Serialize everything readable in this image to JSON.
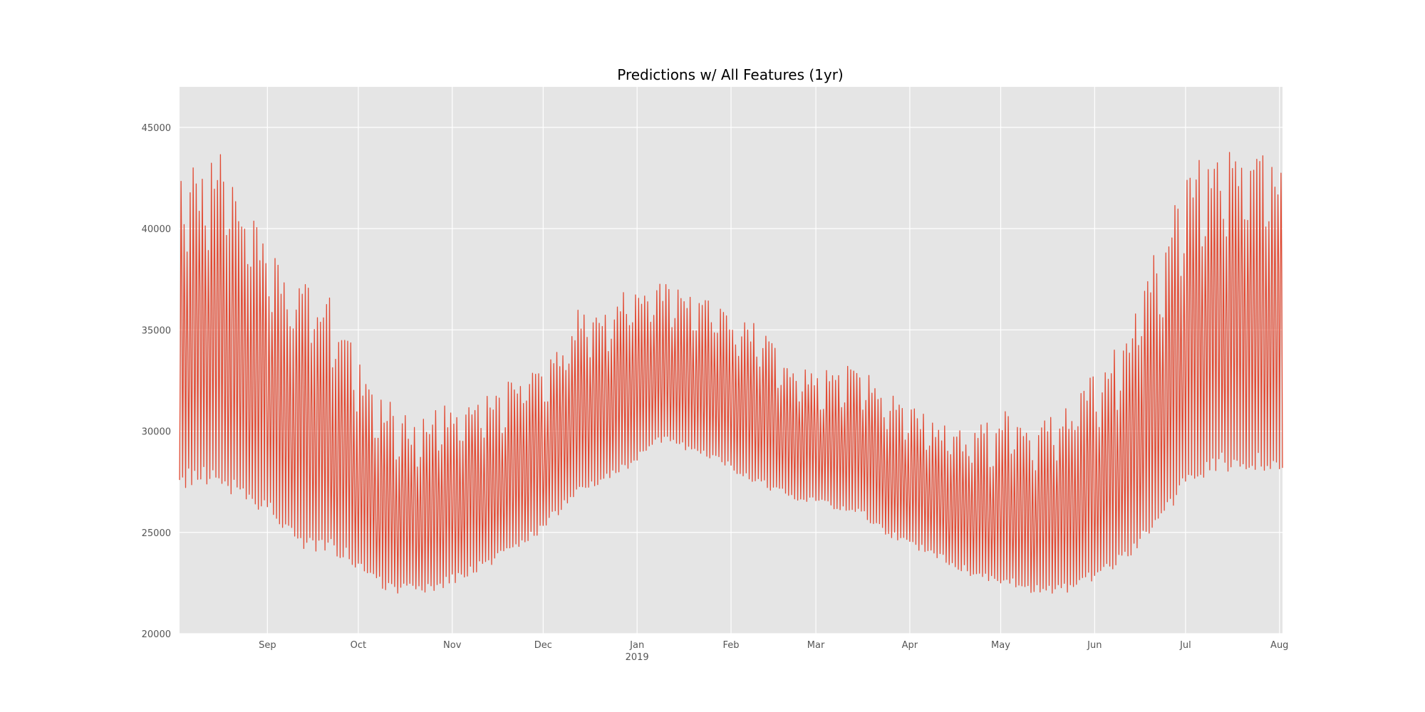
{
  "chart_data": {
    "type": "line",
    "title": "Predictions w/ All Features (1yr)",
    "xlabel": "",
    "ylabel": "",
    "ylim": [
      20000,
      47000
    ],
    "xlim": [
      "2018-08-03",
      "2019-08-02"
    ],
    "y_ticks": [
      20000,
      25000,
      30000,
      35000,
      40000,
      45000
    ],
    "x_ticks": [
      {
        "date": "2018-09-01",
        "label": "Sep"
      },
      {
        "date": "2018-10-01",
        "label": "Oct"
      },
      {
        "date": "2018-11-01",
        "label": "Nov"
      },
      {
        "date": "2018-12-01",
        "label": "Dec"
      },
      {
        "date": "2019-01-01",
        "label": "Jan",
        "sublabel": "2019"
      },
      {
        "date": "2019-02-01",
        "label": "Feb"
      },
      {
        "date": "2019-03-01",
        "label": "Mar"
      },
      {
        "date": "2019-04-01",
        "label": "Apr"
      },
      {
        "date": "2019-05-01",
        "label": "May"
      },
      {
        "date": "2019-06-01",
        "label": "Jun"
      },
      {
        "date": "2019-07-01",
        "label": "Jul"
      },
      {
        "date": "2019-08-01",
        "label": "Aug"
      }
    ],
    "grid": true,
    "colors": {
      "line": "#E24A33",
      "plot_bg": "#E5E5E5",
      "grid": "#FFFFFF"
    },
    "series": [
      {
        "x": [
          "2018-08-03",
          "2018-08-10",
          "2018-08-17",
          "2018-08-24",
          "2018-08-31",
          "2018-09-07",
          "2018-09-14",
          "2018-09-21",
          "2018-09-28",
          "2018-10-05",
          "2018-10-12",
          "2018-10-19",
          "2018-10-26",
          "2018-11-02",
          "2018-11-09",
          "2018-11-16",
          "2018-11-23",
          "2018-11-30",
          "2018-12-07",
          "2018-12-14",
          "2018-12-21",
          "2018-12-28",
          "2019-01-04",
          "2019-01-11",
          "2019-01-18",
          "2019-01-25",
          "2019-02-01",
          "2019-02-08",
          "2019-02-15",
          "2019-02-22",
          "2019-03-01",
          "2019-03-08",
          "2019-03-15",
          "2019-03-22",
          "2019-03-29",
          "2019-04-05",
          "2019-04-12",
          "2019-04-19",
          "2019-04-26",
          "2019-05-03",
          "2019-05-10",
          "2019-05-17",
          "2019-05-24",
          "2019-05-31",
          "2019-06-07",
          "2019-06-14",
          "2019-06-21",
          "2019-06-28",
          "2019-07-05",
          "2019-07-12",
          "2019-07-19",
          "2019-07-26",
          "2019-08-02"
        ],
        "daily_max": [
          43500,
          43000,
          44500,
          41500,
          40000,
          37500,
          38000,
          37000,
          35000,
          32000,
          31500,
          30500,
          31000,
          31500,
          32000,
          32500,
          33000,
          33500,
          34500,
          36500,
          36000,
          37000,
          37500,
          37500,
          37000,
          36500,
          36000,
          35500,
          34500,
          33500,
          33000,
          33000,
          33500,
          32500,
          31500,
          31000,
          30500,
          30000,
          30500,
          31000,
          30500,
          31000,
          31500,
          33000,
          34000,
          36000,
          39000,
          41500,
          43500,
          44000,
          44500,
          44000,
          43500
        ],
        "daily_min": [
          27000,
          27500,
          27000,
          26500,
          26000,
          25000,
          24000,
          24000,
          23500,
          22500,
          22000,
          22000,
          22000,
          22500,
          23000,
          23500,
          24000,
          25000,
          26000,
          27000,
          27500,
          28000,
          29000,
          29500,
          29000,
          28500,
          28000,
          27500,
          27000,
          26500,
          26500,
          26000,
          26000,
          25000,
          24500,
          24000,
          23500,
          23000,
          22500,
          22500,
          22000,
          22000,
          22000,
          22500,
          23000,
          24000,
          25000,
          26500,
          27500,
          28000,
          28000,
          28000,
          28000
        ]
      }
    ]
  }
}
